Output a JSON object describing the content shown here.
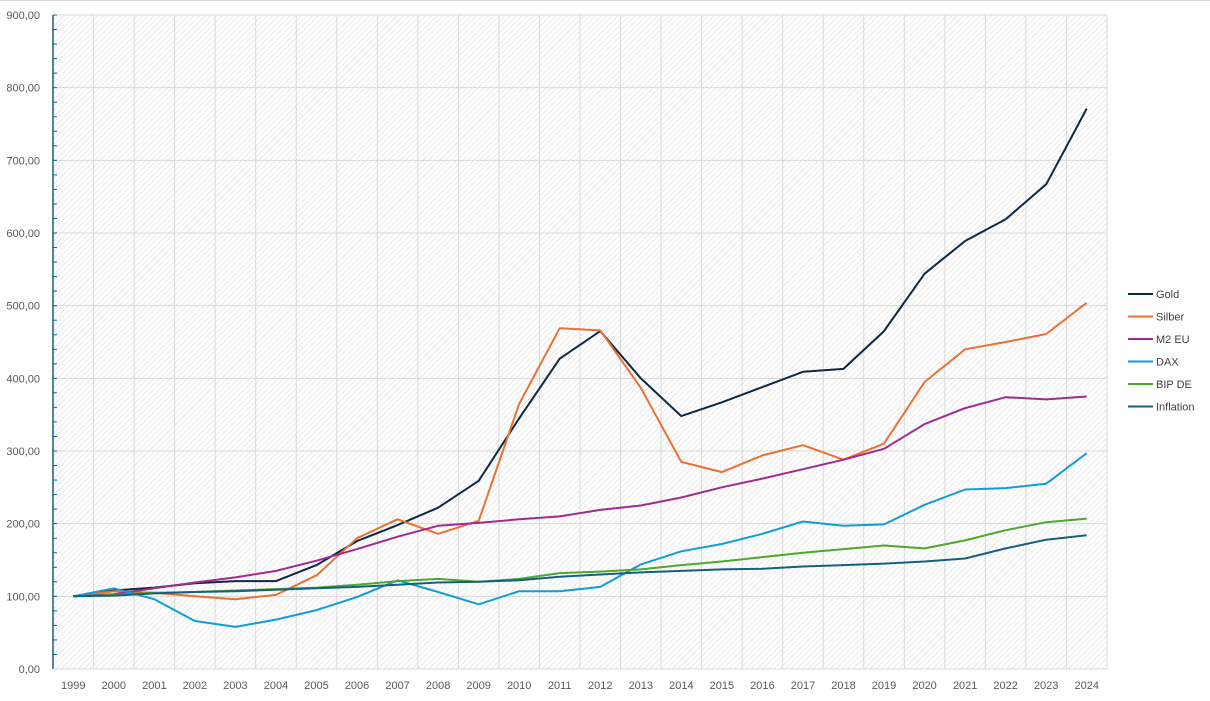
{
  "chart_data": {
    "type": "line",
    "title": "",
    "xlabel": "",
    "ylabel": "",
    "ylim": [
      0,
      900
    ],
    "ytick_step": 100,
    "ytick_labels": [
      "0,00",
      "100,00",
      "200,00",
      "300,00",
      "400,00",
      "500,00",
      "600,00",
      "700,00",
      "800,00",
      "900,00"
    ],
    "grid": true,
    "legend_position": "right",
    "categories": [
      "1999",
      "2000",
      "2001",
      "2002",
      "2003",
      "2004",
      "2005",
      "2006",
      "2007",
      "2008",
      "2009",
      "2010",
      "2011",
      "2012",
      "2013",
      "2014",
      "2015",
      "2016",
      "2017",
      "2018",
      "2019",
      "2020",
      "2021",
      "2022",
      "2023",
      "2024"
    ],
    "series": [
      {
        "name": "Gold",
        "color": "#0e2841",
        "values": [
          100,
          108,
          112,
          118,
          121,
          121,
          143,
          176,
          198,
          222,
          259,
          345,
          427,
          465,
          400,
          348,
          367,
          388,
          409,
          413,
          465,
          544,
          589,
          619,
          667,
          771
        ]
      },
      {
        "name": "Silber",
        "color": "#e97132",
        "values": [
          100,
          107,
          105,
          100,
          96,
          102,
          129,
          180,
          206,
          186,
          204,
          365,
          469,
          466,
          387,
          285,
          271,
          294,
          308,
          288,
          310,
          395,
          440,
          450,
          461,
          504
        ]
      },
      {
        "name": "M2 EU",
        "color": "#a02b93",
        "values": [
          100,
          103,
          111,
          119,
          126,
          135,
          149,
          165,
          182,
          197,
          201,
          206,
          210,
          219,
          225,
          236,
          250,
          262,
          275,
          288,
          303,
          337,
          359,
          374,
          371,
          375
        ]
      },
      {
        "name": "DAX",
        "color": "#0f9ed5",
        "values": [
          100,
          111,
          96,
          66,
          58,
          68,
          81,
          99,
          122,
          106,
          89,
          107,
          107,
          113,
          144,
          162,
          172,
          186,
          203,
          197,
          199,
          226,
          247,
          249,
          255,
          297
        ]
      },
      {
        "name": "BIP DE",
        "color": "#4ea72e",
        "values": [
          100,
          102,
          105,
          106,
          108,
          110,
          112,
          116,
          121,
          124,
          120,
          124,
          132,
          134,
          137,
          143,
          148,
          154,
          160,
          165,
          170,
          166,
          177,
          191,
          202,
          207
        ]
      },
      {
        "name": "Inflation",
        "color": "#156082",
        "values": [
          100,
          101,
          104,
          106,
          107,
          109,
          111,
          113,
          116,
          119,
          120,
          122,
          127,
          130,
          133,
          135,
          137,
          138,
          141,
          143,
          145,
          148,
          152,
          166,
          178,
          184
        ]
      }
    ]
  }
}
